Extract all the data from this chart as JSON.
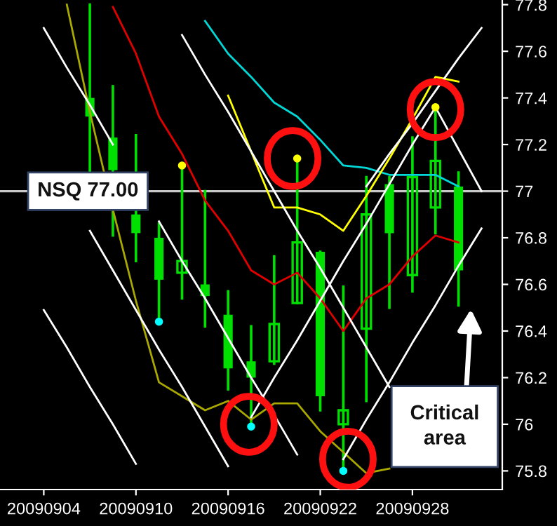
{
  "chart_data": {
    "type": "candlestick",
    "categories": [
      "20090904",
      null,
      null,
      null,
      "20090910",
      null,
      null,
      null,
      "20090916",
      null,
      null,
      null,
      "20090922",
      null,
      null,
      null,
      "20090928",
      null,
      null,
      null
    ],
    "color": "#00e000",
    "ohlc": [
      null,
      null,
      [
        77.4,
        77.8,
        77.08,
        77.32
      ],
      [
        77.23,
        77.45,
        76.81,
        77.09
      ],
      [
        76.9,
        77.24,
        76.7,
        76.82
      ],
      [
        76.8,
        76.86,
        76.44,
        76.62
      ],
      [
        76.65,
        77.11,
        76.54,
        76.7
      ],
      [
        76.6,
        77.0,
        76.42,
        76.55
      ],
      [
        76.47,
        76.57,
        76.15,
        76.24
      ],
      [
        76.27,
        76.42,
        75.99,
        76.2
      ],
      [
        76.27,
        76.72,
        76.26,
        76.43
      ],
      [
        76.52,
        77.14,
        76.52,
        76.78
      ],
      [
        76.74,
        76.74,
        76.06,
        76.12
      ],
      [
        76.0,
        76.59,
        75.8,
        76.06
      ],
      [
        76.41,
        77.06,
        76.1,
        76.9
      ],
      [
        77.03,
        77.06,
        76.5,
        76.82
      ],
      [
        76.64,
        77.23,
        76.57,
        77.06
      ],
      [
        76.93,
        77.36,
        76.82,
        77.13
      ],
      [
        77.02,
        77.08,
        76.51,
        76.66
      ],
      null
    ],
    "series": [
      {
        "type": "line",
        "color": "#00d8d8",
        "values": [
          null,
          null,
          null,
          null,
          null,
          null,
          null,
          77.73,
          77.59,
          77.49,
          77.38,
          77.32,
          77.22,
          77.11,
          77.1,
          77.07,
          77.07,
          77.07,
          77.02,
          null
        ]
      },
      {
        "type": "line",
        "color": "#e00000",
        "values": [
          null,
          null,
          null,
          77.79,
          77.59,
          77.32,
          77.16,
          76.96,
          76.83,
          76.66,
          76.6,
          76.65,
          76.54,
          76.4,
          76.54,
          76.6,
          76.72,
          76.81,
          76.78,
          null
        ]
      },
      {
        "type": "line",
        "color": "#ffff00",
        "values": [
          null,
          null,
          null,
          null,
          null,
          null,
          null,
          null,
          77.41,
          77.17,
          76.93,
          76.93,
          76.9,
          76.83,
          76.98,
          77.14,
          77.31,
          77.49,
          77.47,
          null
        ]
      },
      {
        "type": "line",
        "color": "#a8a800",
        "values": [
          null,
          77.8,
          77.34,
          76.92,
          76.53,
          76.18,
          76.12,
          76.06,
          76.1,
          76.02,
          76.09,
          76.09,
          75.97,
          75.88,
          75.79,
          75.81,
          null,
          null,
          null,
          null
        ]
      },
      {
        "type": "line",
        "color": "#ffffff",
        "values": [
          76.49,
          76.33,
          76.16,
          76.0,
          75.83,
          null,
          null,
          null,
          null,
          null,
          null,
          null,
          null,
          null,
          null,
          null,
          null,
          null,
          null,
          null
        ]
      },
      {
        "type": "line",
        "color": "#ffffff",
        "values": [
          null,
          null,
          76.83,
          76.66,
          76.49,
          76.32,
          76.16,
          75.99,
          75.82,
          null,
          null,
          null,
          null,
          null,
          null,
          null,
          null,
          null,
          null,
          null
        ]
      },
      {
        "type": "line",
        "color": "#ffffff",
        "values": [
          77.7,
          77.53,
          77.37,
          77.2,
          null,
          76.87,
          76.7,
          76.54,
          76.37,
          76.2,
          76.04,
          75.87,
          null,
          null,
          null,
          null,
          null,
          null,
          null,
          null
        ]
      },
      {
        "type": "line",
        "color": "#ffffff",
        "values": [
          null,
          null,
          null,
          null,
          null,
          null,
          77.67,
          77.5,
          77.34,
          77.17,
          77.0,
          76.83,
          76.67,
          76.5,
          76.33,
          76.16,
          null,
          null,
          null,
          null
        ]
      },
      {
        "type": "line",
        "color": "#ffffff",
        "values": [
          null,
          null,
          null,
          null,
          null,
          null,
          null,
          null,
          null,
          76.03,
          76.2,
          76.36,
          76.53,
          76.7,
          76.86,
          77.03,
          77.2,
          77.36,
          null,
          null
        ]
      },
      {
        "type": "line",
        "color": "#ffffff",
        "values": [
          null,
          null,
          null,
          null,
          null,
          null,
          null,
          null,
          null,
          null,
          null,
          null,
          null,
          null,
          null,
          null,
          null,
          77.36,
          77.18,
          77.0
        ]
      },
      {
        "type": "line",
        "color": "#ffffff",
        "values": [
          null,
          null,
          null,
          null,
          null,
          null,
          null,
          null,
          null,
          null,
          null,
          null,
          null,
          75.85,
          76.02,
          76.18,
          76.35,
          76.51,
          76.68,
          76.84
        ]
      },
      {
        "type": "line",
        "color": "#ffffff",
        "values": [
          null,
          null,
          null,
          null,
          null,
          null,
          null,
          null,
          null,
          null,
          null,
          null,
          null,
          null,
          77.02,
          77.16,
          77.29,
          77.43,
          77.57,
          77.7
        ]
      },
      {
        "type": "scatter",
        "color": "#ffff00",
        "values": [
          null,
          null,
          null,
          null,
          null,
          null,
          77.11,
          null,
          null,
          null,
          null,
          77.14,
          null,
          null,
          null,
          null,
          null,
          77.36,
          null,
          null
        ]
      },
      {
        "type": "scatter",
        "color": "#00ffff",
        "values": [
          null,
          null,
          null,
          null,
          null,
          76.44,
          null,
          null,
          null,
          75.99,
          null,
          null,
          null,
          75.8,
          null,
          null,
          null,
          null,
          null,
          null
        ]
      }
    ],
    "ylim": [
      75.72,
      77.82
    ],
    "yticks": [
      75.8,
      76,
      76.2,
      76.4,
      76.6,
      76.8,
      77,
      77.2,
      77.4,
      77.6,
      77.8
    ],
    "ref_lines": [
      {
        "axis": "y",
        "value": 77,
        "label": "NSQ 77.00",
        "color": "#c8c8c8"
      }
    ],
    "annotations": [
      "Critical area"
    ]
  }
}
